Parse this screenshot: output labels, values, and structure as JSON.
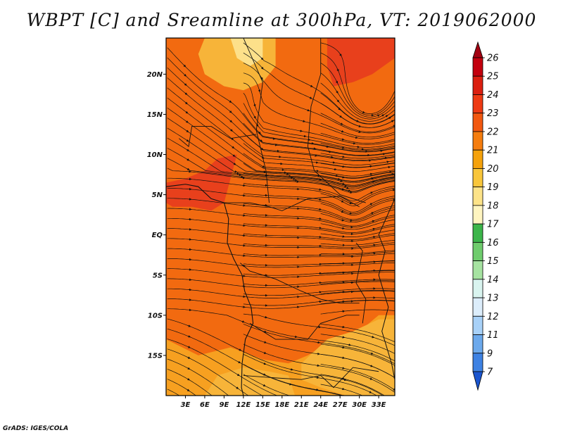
{
  "title": "WBPT [C] and Sreamline at 300hPa, VT: 2019062000",
  "footer": "GrADS: IGES/COLA",
  "map": {
    "lon_range": [
      0,
      35.5
    ],
    "lat_range": [
      -20,
      24.5
    ],
    "lat_ticks": [
      {
        "value": 20,
        "label": "20N"
      },
      {
        "value": 15,
        "label": "15N"
      },
      {
        "value": 10,
        "label": "10N"
      },
      {
        "value": 5,
        "label": "5N"
      },
      {
        "value": 0,
        "label": "EQ"
      },
      {
        "value": -5,
        "label": "5S"
      },
      {
        "value": -10,
        "label": "10S"
      },
      {
        "value": -15,
        "label": "15S"
      }
    ],
    "lon_ticks": [
      {
        "value": 3,
        "label": "3E"
      },
      {
        "value": 6,
        "label": "6E"
      },
      {
        "value": 9,
        "label": "9E"
      },
      {
        "value": 12,
        "label": "12E"
      },
      {
        "value": 15,
        "label": "15E"
      },
      {
        "value": 18,
        "label": "18E"
      },
      {
        "value": 21,
        "label": "21E"
      },
      {
        "value": 24,
        "label": "24E"
      },
      {
        "value": 27,
        "label": "27E"
      },
      {
        "value": 30,
        "label": "30E"
      },
      {
        "value": 33,
        "label": "33E"
      }
    ],
    "shade_regions": [
      {
        "name": "background-22-23",
        "color": "#f26a10",
        "polygon": [
          [
            0,
            -20
          ],
          [
            35.5,
            -20
          ],
          [
            35.5,
            24.5
          ],
          [
            0,
            24.5
          ]
        ]
      },
      {
        "name": "north-cool-20-21",
        "color": "#f7b439",
        "polygon": [
          [
            6,
            24.5
          ],
          [
            17,
            24.5
          ],
          [
            17,
            21
          ],
          [
            15,
            19
          ],
          [
            12,
            18
          ],
          [
            9,
            18.5
          ],
          [
            6,
            20
          ],
          [
            5,
            22.5
          ]
        ]
      },
      {
        "name": "north-cool-19-20",
        "color": "#fde08a",
        "polygon": [
          [
            10,
            24.5
          ],
          [
            15,
            24.5
          ],
          [
            15,
            22
          ],
          [
            13,
            21
          ],
          [
            11,
            22
          ]
        ]
      },
      {
        "name": "west-warm-23-24",
        "color": "#e8401c",
        "polygon": [
          [
            0,
            6.5
          ],
          [
            3,
            7
          ],
          [
            6,
            8
          ],
          [
            8,
            9.5
          ],
          [
            11,
            10
          ],
          [
            10,
            7
          ],
          [
            9,
            4
          ],
          [
            7,
            3
          ],
          [
            4,
            3.5
          ],
          [
            1,
            3.5
          ],
          [
            0,
            4
          ]
        ]
      },
      {
        "name": "northeast-warm-23-24",
        "color": "#e8401c",
        "polygon": [
          [
            25,
            24.5
          ],
          [
            35.5,
            24.5
          ],
          [
            35.5,
            22
          ],
          [
            32,
            20
          ],
          [
            29,
            19
          ],
          [
            26,
            18.5
          ],
          [
            25,
            21
          ]
        ]
      },
      {
        "name": "south-cool-20-21",
        "color": "#f7a020",
        "polygon": [
          [
            0,
            -13
          ],
          [
            5,
            -15
          ],
          [
            10,
            -14
          ],
          [
            15,
            -15.5
          ],
          [
            19,
            -16
          ],
          [
            22,
            -15
          ],
          [
            26,
            -13
          ],
          [
            30,
            -12
          ],
          [
            33,
            -10
          ],
          [
            35.5,
            -10
          ],
          [
            35.5,
            -20
          ],
          [
            0,
            -20
          ]
        ]
      },
      {
        "name": "southeast-cool-21",
        "color": "#f7b439",
        "polygon": [
          [
            21,
            -16
          ],
          [
            25,
            -13
          ],
          [
            29,
            -12
          ],
          [
            33,
            -10.5
          ],
          [
            35.5,
            -10.5
          ],
          [
            35.5,
            -20
          ],
          [
            28,
            -20
          ],
          [
            24,
            -19
          ],
          [
            21,
            -18
          ]
        ]
      },
      {
        "name": "southwest-cool-21",
        "color": "#f7b439",
        "polygon": [
          [
            6,
            -20
          ],
          [
            8,
            -17.5
          ],
          [
            12,
            -16.5
          ],
          [
            16,
            -17
          ],
          [
            19,
            -17.5
          ],
          [
            20,
            -20
          ]
        ]
      }
    ]
  },
  "colorbar": {
    "ticks": [
      "26",
      "25",
      "24",
      "23",
      "22",
      "21",
      "20",
      "19",
      "18",
      "17",
      "16",
      "15",
      "14",
      "13",
      "12",
      "11",
      "9",
      "7"
    ],
    "colors": [
      "#c3000e",
      "#db1f10",
      "#ee3a13",
      "#f25810",
      "#f57d0e",
      "#f5a20c",
      "#f9c63b",
      "#fde388",
      "#fff5c0",
      "#3cb54a",
      "#6fcc6d",
      "#a6e3a1",
      "#d9f4ef",
      "#dcedfb",
      "#a8d1f8",
      "#6ca9ec",
      "#3e82e3",
      "#1f60d6"
    ],
    "top_color": "#a30011",
    "bottom_color": "#1a55cf"
  }
}
